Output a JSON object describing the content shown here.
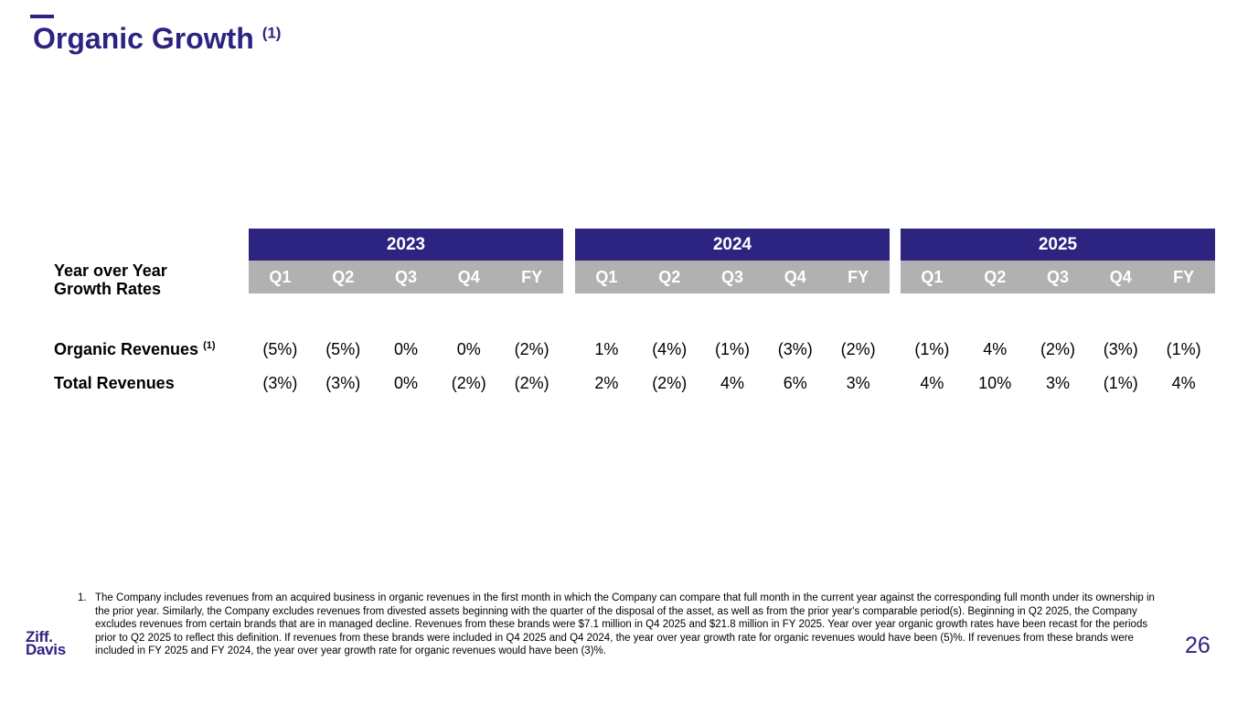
{
  "slide": {
    "title": "Organic Growth",
    "title_superscript": "(1)",
    "page_number": "26"
  },
  "colors": {
    "accent": "#2d2381",
    "header_gray": "#b2b1b2",
    "header_text": "#ffffff",
    "body_text": "#000000"
  },
  "logo": {
    "line1": "Ziff.",
    "line2": "Davis"
  },
  "table": {
    "row_header_line1": "Year over Year",
    "row_header_line2": "Growth Rates",
    "years": [
      "2023",
      "2024",
      "2025"
    ],
    "periods": [
      "Q1",
      "Q2",
      "Q3",
      "Q4",
      "FY"
    ],
    "rows": [
      {
        "label": "Organic Revenues",
        "superscript": "(1)",
        "values": [
          "(5%)",
          "(5%)",
          "0%",
          "0%",
          "(2%)",
          "1%",
          "(4%)",
          "(1%)",
          "(3%)",
          "(2%)",
          "(1%)",
          "4%",
          "(2%)",
          "(3%)",
          "(1%)"
        ]
      },
      {
        "label": "Total Revenues",
        "superscript": "",
        "values": [
          "(3%)",
          "(3%)",
          "0%",
          "(2%)",
          "(2%)",
          "2%",
          "(2%)",
          "4%",
          "6%",
          "3%",
          "4%",
          "10%",
          "3%",
          "(1%)",
          "4%"
        ]
      }
    ]
  },
  "footnote": {
    "marker": "1.",
    "text": "The Company includes revenues from an acquired business in organic revenues in the first month in which the Company can compare that full month in the current year against the corresponding full month under its ownership in the prior year. Similarly, the Company excludes revenues from divested assets beginning with the quarter of the disposal of the asset, as well as from the prior year's comparable period(s). Beginning in Q2 2025, the Company excludes revenues from certain brands that are in managed decline.  Revenues from these brands were $7.1 million in Q4 2025 and $21.8 million in FY 2025. Year over year organic growth rates have been recast for the periods prior to Q2 2025 to reflect this definition. If revenues from these brands were included in Q4 2025 and Q4 2024, the year over year growth rate for organic revenues would have been (5)%. If revenues from these brands were included in FY 2025 and FY 2024, the year over year growth rate for organic revenues would have been (3)%."
  }
}
